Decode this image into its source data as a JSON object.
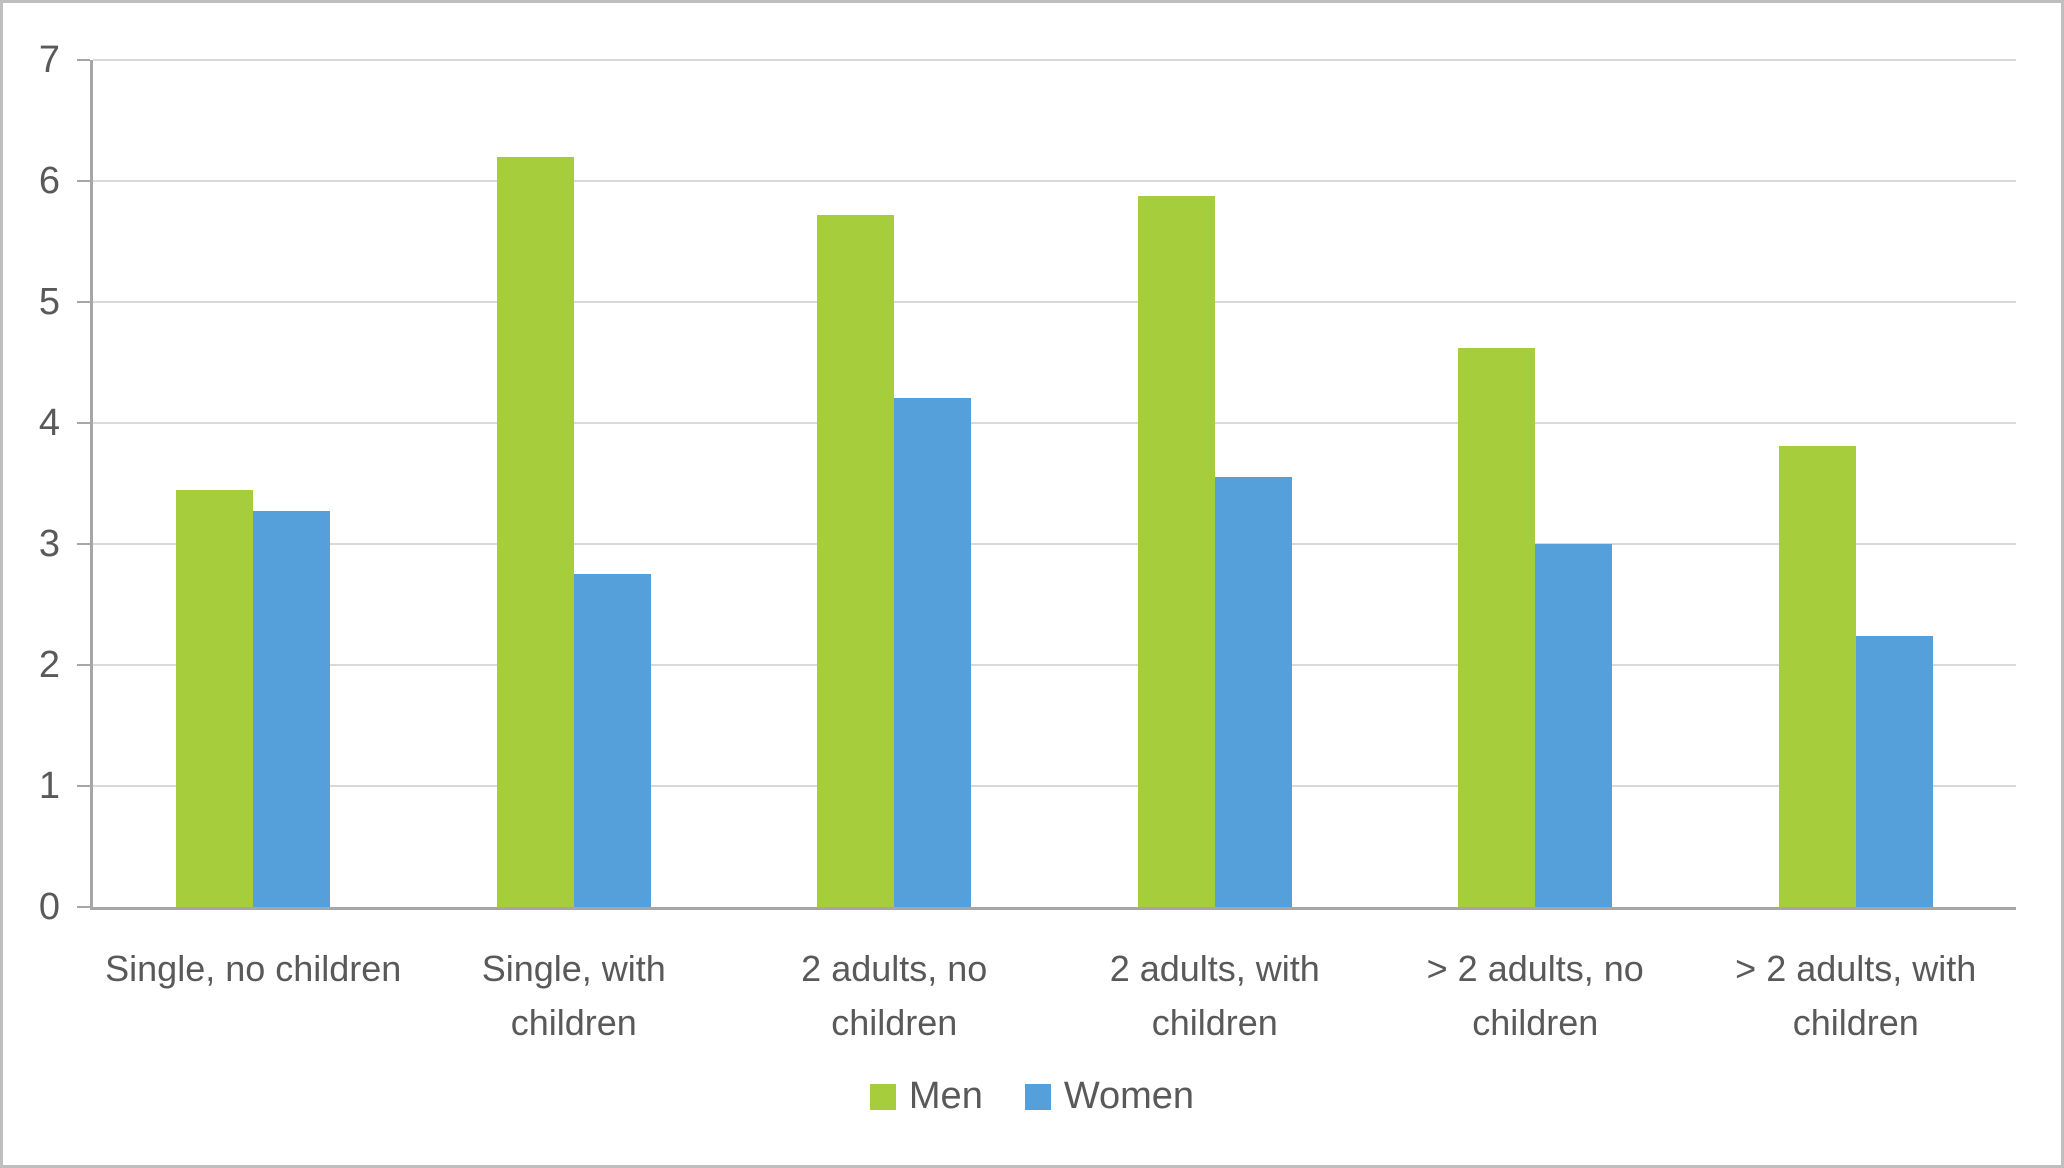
{
  "colors": {
    "frame_border": "#bfbfbf",
    "axis": "#a6a6a6",
    "gridline": "#d9d9d9",
    "text": "#595959",
    "men_green": "#a5cd3c",
    "women_blue": "#55a0db"
  },
  "chart_data": {
    "type": "bar",
    "title": "",
    "xlabel": "",
    "ylabel": "",
    "categories": [
      "Single, no children",
      "Single, with children",
      "2 adults, no children",
      "2 adults, with children",
      "> 2 adults, no children",
      "> 2 adults, with children"
    ],
    "categories_display": [
      "Single, no children",
      "Single, with\nchildren",
      "2 adults, no\nchildren",
      "2 adults, with\nchildren",
      "> 2 adults, no\nchildren",
      "> 2 adults, with\nchildren"
    ],
    "series": [
      {
        "name": "Men",
        "color": "#a5cd3c",
        "values": [
          3.45,
          6.2,
          5.72,
          5.88,
          4.62,
          3.81
        ]
      },
      {
        "name": "Women",
        "color": "#55a0db",
        "values": [
          3.27,
          2.75,
          4.21,
          3.55,
          3.0,
          2.24
        ]
      }
    ],
    "ylim": [
      0,
      7
    ],
    "yticks": [
      0,
      1,
      2,
      3,
      4,
      5,
      6,
      7
    ],
    "grid": true,
    "legend_position": "bottom"
  }
}
